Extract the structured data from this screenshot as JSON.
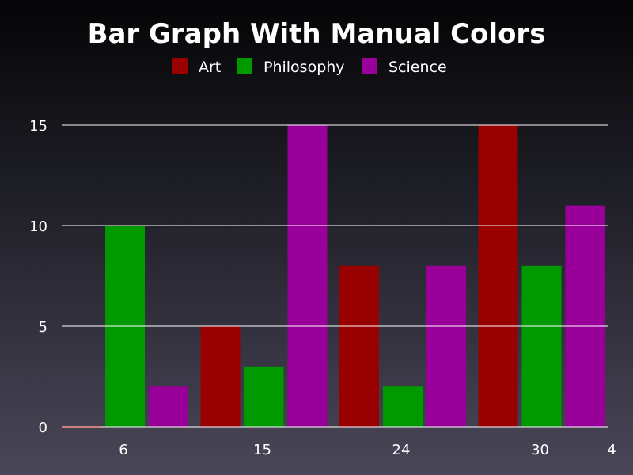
{
  "chart_data": {
    "type": "bar",
    "title": "Bar Graph With Manual Colors",
    "xlabel": "",
    "ylabel": "",
    "categories": [
      "6",
      "15",
      "24",
      "30"
    ],
    "x_end_label": "4",
    "ylim": [
      0,
      15
    ],
    "yticks": [
      0,
      5,
      10,
      15
    ],
    "grid": true,
    "legend_position": "top",
    "series": [
      {
        "name": "Art",
        "color": "#990000",
        "values": [
          0,
          5,
          8,
          15
        ]
      },
      {
        "name": "Philosophy",
        "color": "#009900",
        "values": [
          10,
          3,
          2,
          8
        ]
      },
      {
        "name": "Science",
        "color": "#990099",
        "values": [
          2,
          15,
          8,
          11
        ]
      }
    ]
  }
}
